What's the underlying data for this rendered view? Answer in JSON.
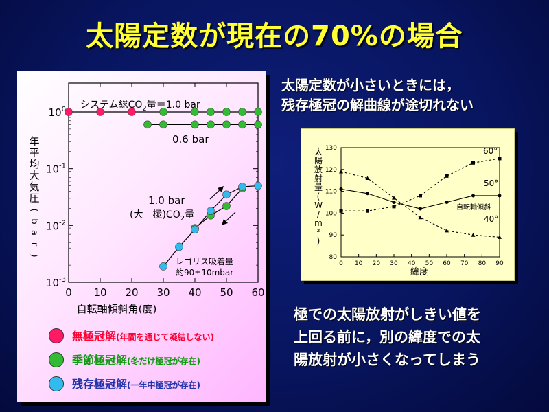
{
  "title": "太陽定数が現在の70%の場合",
  "right_top": {
    "line1": "太陽定数が小さいときには，",
    "line2": "残存極冠の解曲線が途切れない"
  },
  "right_bottom": {
    "line1": "極での太陽放射がしきい値を",
    "line2": "上回る前に，別の緯度での太",
    "line3": "陽放射が小さくなってしまう"
  },
  "legend": [
    {
      "label": "無極冠解",
      "note": "(年間を通じて凝結しない)",
      "color": "#ff1a66",
      "text_color": "#ff0033"
    },
    {
      "label": "季節極冠解",
      "note": "(冬だけ極冠が存在)",
      "color": "#33bb33",
      "text_color": "#119911"
    },
    {
      "label": "残存極冠解",
      "note": "(一年中極冠が存在)",
      "color": "#33bbee",
      "text_color": "#2233aa"
    }
  ],
  "chart_data": [
    {
      "type": "scatter",
      "xlabel": "自転軸傾斜角(度)",
      "ylabel": "年平均大気圧(bar)",
      "xlim": [
        0,
        60
      ],
      "ylim": [
        0.001,
        1
      ],
      "yscale": "log",
      "xticks": [
        "0",
        "10",
        "20",
        "30",
        "40",
        "50",
        "60"
      ],
      "yticks": [
        "10",
        "10",
        "10",
        "10"
      ],
      "ytick_exponents": [
        "0",
        "-1",
        "-2",
        "-3"
      ],
      "annotations": {
        "total_prefix": "システム総CO",
        "total_sub": "2",
        "total_suffix": "量＝1.0 bar",
        "p06": "0.6 bar",
        "p10": "1.0 bar",
        "p10b_prefix": "(大＋極)CO",
        "p10b_sub": "2",
        "p10b_suffix": "量",
        "regolith1": "レゴリス吸着量",
        "regolith2": "約90±10mbar"
      },
      "series": [
        {
          "color": "#ff1a66",
          "x": [
            0,
            10,
            20
          ],
          "y": [
            1.0,
            1.0,
            1.0
          ]
        },
        {
          "color": "#33bb33",
          "x": [
            30,
            40,
            45,
            50,
            55,
            60
          ],
          "y": [
            1.0,
            1.0,
            1.0,
            1.0,
            1.0,
            1.0
          ]
        },
        {
          "color": "#33bb33",
          "x": [
            25,
            30,
            40,
            45,
            50,
            55,
            60
          ],
          "y": [
            0.6,
            0.6,
            0.6,
            0.6,
            0.6,
            0.6,
            0.6
          ]
        },
        {
          "color": "#33bb33",
          "x": [
            40,
            45,
            50,
            55
          ],
          "y": [
            0.009,
            0.015,
            0.022,
            0.045
          ]
        },
        {
          "color": "#33bbee",
          "x": [
            30,
            35,
            40,
            45,
            50,
            55,
            60
          ],
          "y": [
            0.0019,
            0.0042,
            0.0085,
            0.018,
            0.035,
            0.048,
            0.05
          ]
        }
      ]
    },
    {
      "type": "line",
      "xlabel": "緯度",
      "ylabel": "太陽放射量(W/m²)",
      "xlim": [
        0,
        90
      ],
      "ylim": [
        80,
        130
      ],
      "xticks": [
        "0",
        "10",
        "20",
        "30",
        "40",
        "50",
        "60",
        "70",
        "80",
        "90"
      ],
      "yticks": [
        "80",
        "90",
        "100",
        "110",
        "120",
        "130"
      ],
      "series": [
        {
          "name": "60°",
          "x": [
            0,
            15,
            30,
            45,
            60,
            75,
            90
          ],
          "y": [
            101,
            101,
            103,
            108,
            117,
            123,
            125
          ]
        },
        {
          "name": "50°",
          "x": [
            0,
            15,
            30,
            45,
            60,
            75,
            90
          ],
          "y": [
            111,
            109,
            105,
            102,
            105,
            108,
            108
          ]
        },
        {
          "name": "40°",
          "x": [
            0,
            15,
            30,
            45,
            60,
            75,
            90
          ],
          "y": [
            119,
            116,
            107,
            98,
            92,
            90,
            89
          ]
        }
      ],
      "annotation": "自転軸傾斜"
    }
  ]
}
